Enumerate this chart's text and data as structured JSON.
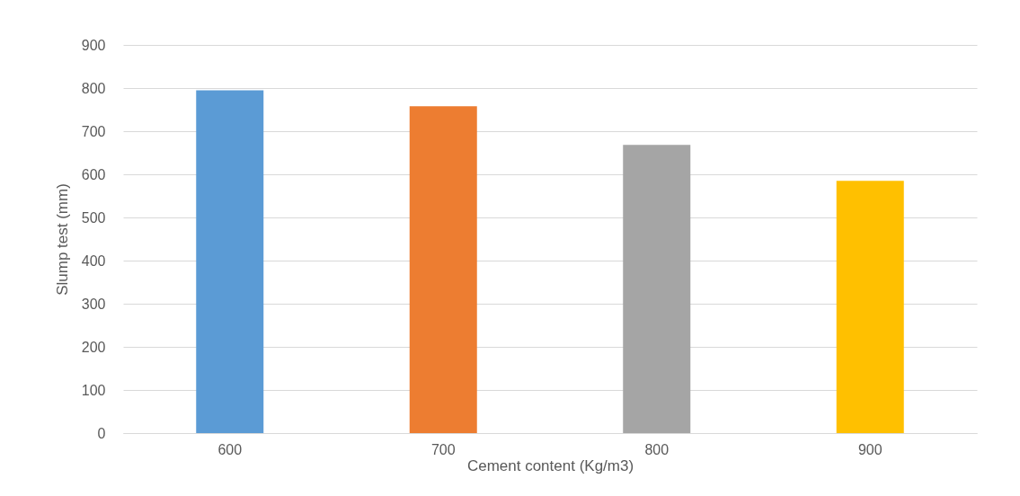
{
  "chart_data": {
    "type": "bar",
    "xlabel": "Cement content (Kg/m3)",
    "ylabel": "Slump test (mm)",
    "categories": [
      "600",
      "700",
      "800",
      "900"
    ],
    "values": [
      795,
      758,
      668,
      585
    ],
    "colors": [
      "#5b9bd5",
      "#ed7d31",
      "#a5a5a5",
      "#ffc000"
    ],
    "ylim": [
      0,
      900
    ],
    "yticks": [
      0,
      100,
      200,
      300,
      400,
      500,
      600,
      700,
      800,
      900
    ],
    "grid": "y"
  }
}
